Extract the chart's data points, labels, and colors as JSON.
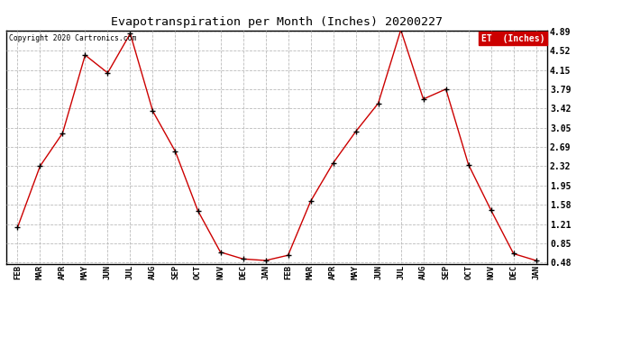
{
  "title": "Evapotranspiration per Month (Inches) 20200227",
  "copyright_text": "Copyright 2020 Cartronics.com",
  "legend_label": "ET  (Inches)",
  "months": [
    "FEB",
    "MAR",
    "APR",
    "MAY",
    "JUN",
    "JUL",
    "AUG",
    "SEP",
    "OCT",
    "NOV",
    "DEC",
    "JAN",
    "FEB",
    "MAR",
    "APR",
    "MAY",
    "JUN",
    "JUL",
    "AUG",
    "SEP",
    "OCT",
    "NOV",
    "DEC",
    "JAN"
  ],
  "values": [
    1.15,
    2.32,
    2.95,
    4.44,
    4.1,
    4.85,
    3.37,
    2.6,
    1.47,
    0.68,
    0.55,
    0.52,
    0.62,
    1.65,
    2.38,
    2.98,
    3.52,
    4.92,
    3.6,
    3.79,
    2.35,
    1.48,
    0.65,
    0.52
  ],
  "ylim_min": 0.48,
  "ylim_max": 4.89,
  "yticks": [
    0.48,
    0.85,
    1.21,
    1.58,
    1.95,
    2.32,
    2.69,
    3.05,
    3.42,
    3.79,
    4.15,
    4.52,
    4.89
  ],
  "line_color": "#cc0000",
  "marker_color": "#000000",
  "background_color": "#ffffff",
  "grid_color": "#bbbbbb",
  "title_color": "#000000",
  "legend_bg_color": "#cc0000",
  "legend_text_color": "#ffffff"
}
